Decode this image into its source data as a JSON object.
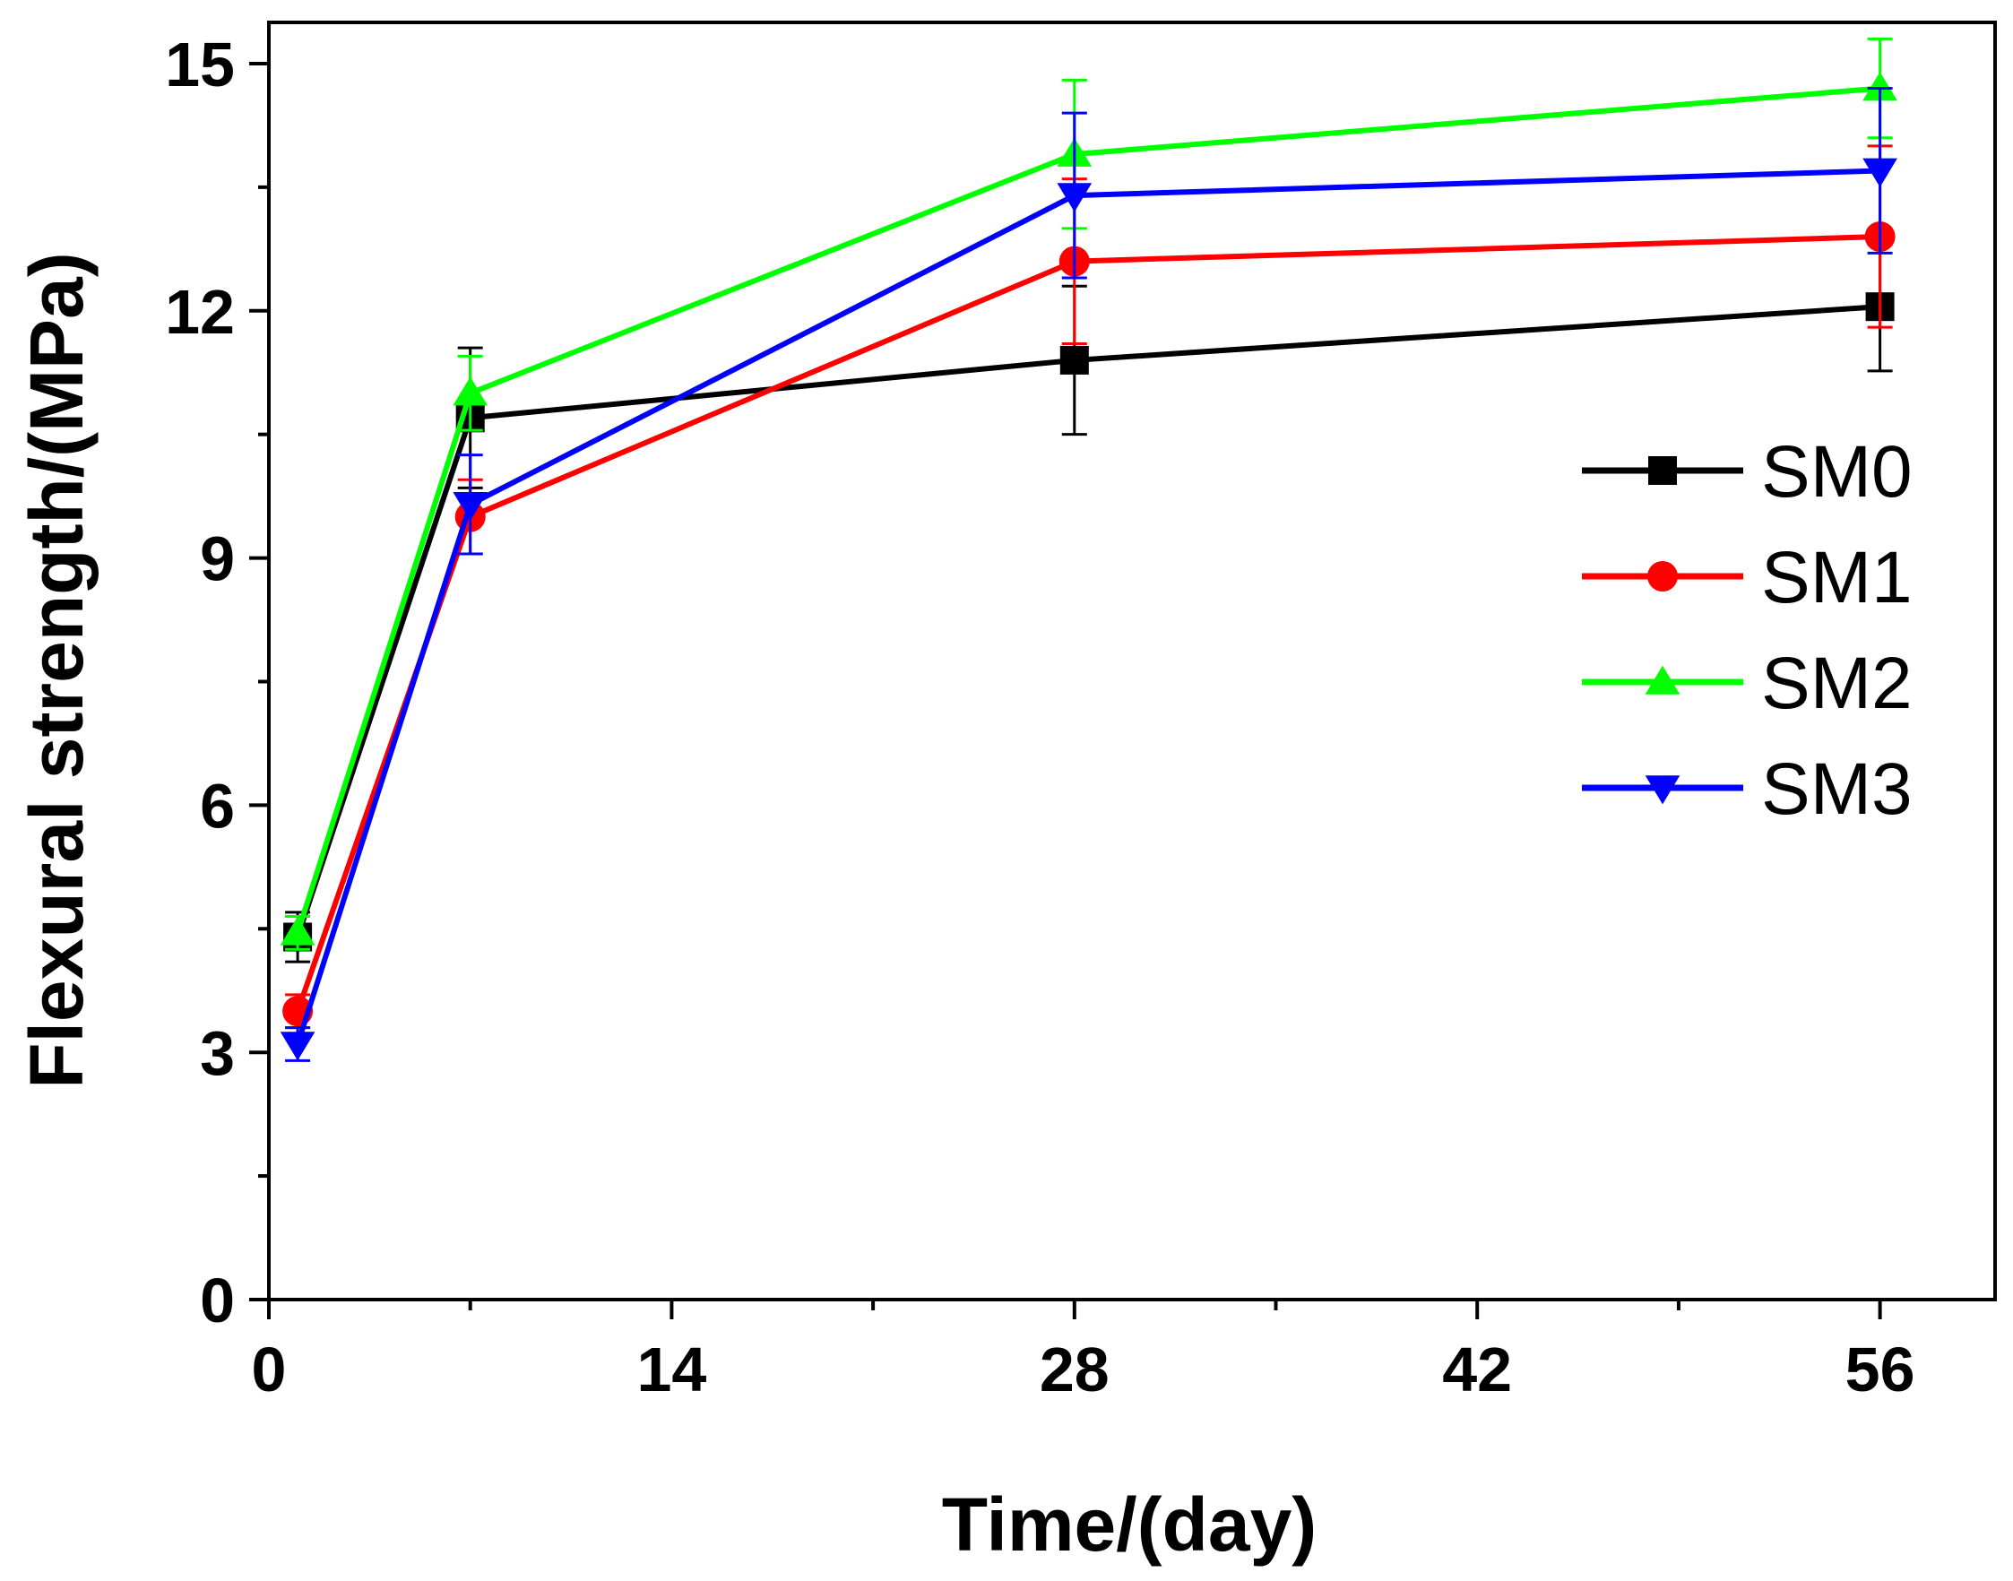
{
  "chart_data": {
    "type": "line",
    "title": "",
    "xlabel": "Time/(day)",
    "ylabel": "Flexural strength/(MPa)",
    "xlim": [
      0,
      60
    ],
    "ylim": [
      0,
      15.5
    ],
    "xticks": [
      0,
      14,
      28,
      42,
      56
    ],
    "yticks": [
      0,
      3,
      6,
      9,
      12,
      15
    ],
    "x": [
      1,
      7,
      28,
      56
    ],
    "legend_position": "right",
    "series": [
      {
        "name": "SM0",
        "color": "#000000",
        "marker": "square",
        "values": [
          4.4,
          10.7,
          11.4,
          12.05
        ],
        "errors": [
          0.3,
          0.85,
          0.9,
          0.78
        ]
      },
      {
        "name": "SM1",
        "color": "#ff0000",
        "marker": "circle",
        "values": [
          3.5,
          9.5,
          12.6,
          12.9
        ],
        "errors": [
          0.2,
          0.45,
          1.0,
          1.1
        ]
      },
      {
        "name": "SM2",
        "color": "#00ff00",
        "marker": "triangle-up",
        "values": [
          4.45,
          11.0,
          13.9,
          14.7
        ],
        "errors": [
          0.2,
          0.45,
          0.9,
          0.6
        ]
      },
      {
        "name": "SM3",
        "color": "#0000ff",
        "marker": "triangle-down",
        "values": [
          3.1,
          9.65,
          13.4,
          13.7
        ],
        "errors": [
          0.2,
          0.6,
          1.0,
          1.0
        ]
      }
    ]
  }
}
